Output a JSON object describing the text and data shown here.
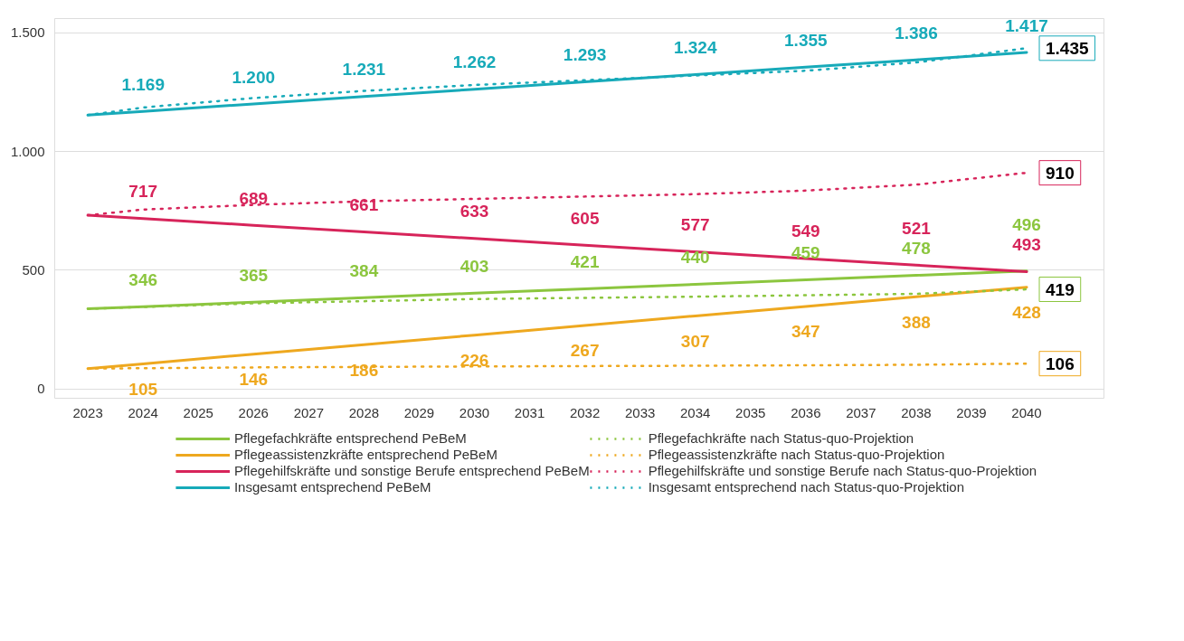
{
  "chart_data": {
    "type": "line",
    "ylim": [
      -40,
      1560
    ],
    "yticks": [
      0,
      {
        "value": 500,
        "label": "500"
      },
      {
        "value": 1000,
        "label": "1.000"
      },
      {
        "value": 1500,
        "label": "1.500"
      }
    ],
    "xlim": [
      2022.4,
      2041.4
    ],
    "xticks": [
      2023,
      2024,
      2025,
      2026,
      2027,
      2028,
      2029,
      2030,
      2031,
      2032,
      2033,
      2034,
      2035,
      2036,
      2037,
      2038,
      2039,
      2040
    ],
    "grid": "y",
    "legend": "bottom",
    "marker": "none",
    "series": [
      {
        "name": "Pflegefachkräfte entsprechend PeBeM",
        "color": "#8cc63f",
        "line_style": "solid",
        "x": [
          2023,
          2024,
          2026,
          2028,
          2030,
          2032,
          2034,
          2036,
          2038,
          2040
        ],
        "values": [
          337,
          346,
          365,
          384,
          403,
          421,
          440,
          459,
          478,
          496
        ],
        "value_labels": [
          null,
          "346",
          "365",
          "384",
          "403",
          "421",
          "440",
          "459",
          "478",
          "496"
        ]
      },
      {
        "name": "Pflegeassistenzkräfte entsprechend PeBeM",
        "color": "#eea81f",
        "line_style": "solid",
        "x": [
          2023,
          2024,
          2026,
          2028,
          2030,
          2032,
          2034,
          2036,
          2038,
          2040
        ],
        "values": [
          85,
          105,
          146,
          186,
          226,
          267,
          307,
          347,
          388,
          428
        ],
        "value_labels": [
          null,
          "105",
          "146",
          "186",
          "226",
          "267",
          "307",
          "347",
          "388",
          "428"
        ]
      },
      {
        "name": "Pflegehilfskräfte und sonstige Berufe entsprechend PeBeM",
        "color": "#d7245a",
        "line_style": "solid",
        "x": [
          2023,
          2024,
          2026,
          2028,
          2030,
          2032,
          2034,
          2036,
          2038,
          2040
        ],
        "values": [
          731,
          717,
          689,
          661,
          633,
          605,
          577,
          549,
          521,
          493
        ],
        "value_labels": [
          null,
          "717",
          "689",
          "661",
          "633",
          "605",
          "577",
          "549",
          "521",
          "493"
        ]
      },
      {
        "name": "Insgesamt entsprechend PeBeM",
        "color": "#17aab9",
        "line_style": "solid",
        "x": [
          2023,
          2024,
          2026,
          2028,
          2030,
          2032,
          2034,
          2036,
          2038,
          2040
        ],
        "values": [
          1153,
          1169,
          1200,
          1231,
          1262,
          1293,
          1324,
          1355,
          1386,
          1417
        ],
        "value_labels": [
          null,
          "1.169",
          "1.200",
          "1.231",
          "1.262",
          "1.293",
          "1.324",
          "1.355",
          "1.386",
          "1.417"
        ]
      },
      {
        "name": "Pflegefachkräfte nach Status-quo-Projektion",
        "color": "#8cc63f",
        "line_style": "dotted",
        "x": [
          2023,
          2026,
          2030,
          2034,
          2038,
          2040
        ],
        "values": [
          337,
          360,
          378,
          388,
          400,
          419
        ],
        "value_labels": [
          null,
          null,
          null,
          null,
          null,
          "419"
        ]
      },
      {
        "name": "Pflegeassistenzkräfte nach Status-quo-Projektion",
        "color": "#eea81f",
        "line_style": "dotted",
        "x": [
          2023,
          2026,
          2030,
          2034,
          2038,
          2040
        ],
        "values": [
          85,
          90,
          94,
          97,
          101,
          106
        ],
        "value_labels": [
          null,
          null,
          null,
          null,
          null,
          "106"
        ]
      },
      {
        "name": "Pflegehilfskräfte und sonstige Berufe nach Status-quo-Projektion",
        "color": "#d7245a",
        "line_style": "dotted",
        "x": [
          2023,
          2024,
          2026,
          2028,
          2030,
          2032,
          2034,
          2036,
          2038,
          2040
        ],
        "values": [
          731,
          755,
          775,
          790,
          800,
          810,
          820,
          835,
          860,
          910
        ],
        "value_labels": [
          null,
          null,
          null,
          null,
          null,
          null,
          null,
          null,
          null,
          "910"
        ]
      },
      {
        "name": "Insgesamt entsprechend nach Status-quo-Projektion",
        "color": "#17aab9",
        "line_style": "dotted",
        "x": [
          2023,
          2024,
          2026,
          2028,
          2030,
          2032,
          2034,
          2036,
          2038,
          2040
        ],
        "values": [
          1153,
          1185,
          1225,
          1255,
          1280,
          1300,
          1320,
          1340,
          1375,
          1435
        ],
        "value_labels": [
          null,
          null,
          null,
          null,
          null,
          null,
          null,
          null,
          null,
          "1.435"
        ]
      }
    ]
  }
}
